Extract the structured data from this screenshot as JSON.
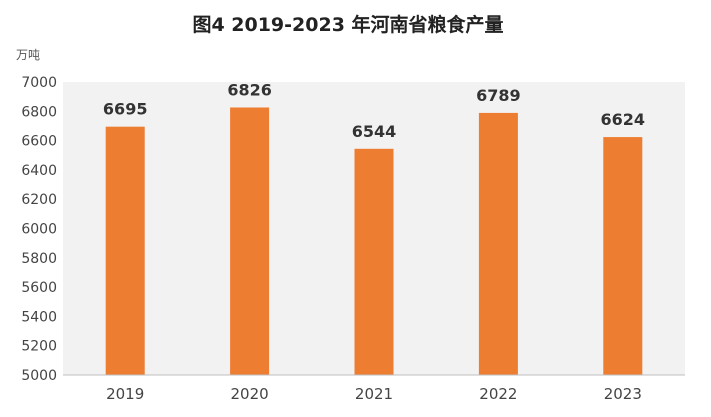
{
  "chart_data": {
    "type": "bar",
    "title": "图4  2019-2023 年河南省粮食产量",
    "ylabel": "万吨",
    "xlabel": "",
    "categories": [
      "2019",
      "2020",
      "2021",
      "2022",
      "2023"
    ],
    "values": [
      6695,
      6826,
      6544,
      6789,
      6624
    ],
    "ylim": [
      5000,
      7000
    ],
    "yticks": [
      5000,
      5200,
      5400,
      5600,
      5800,
      6000,
      6200,
      6400,
      6600,
      6800,
      7000
    ],
    "data_labels": true,
    "grid": false,
    "legend": "none",
    "colors": {
      "bar": "#ed7d31",
      "plot_background": "#f2f2f2",
      "axis": "#bfbfbf"
    }
  }
}
